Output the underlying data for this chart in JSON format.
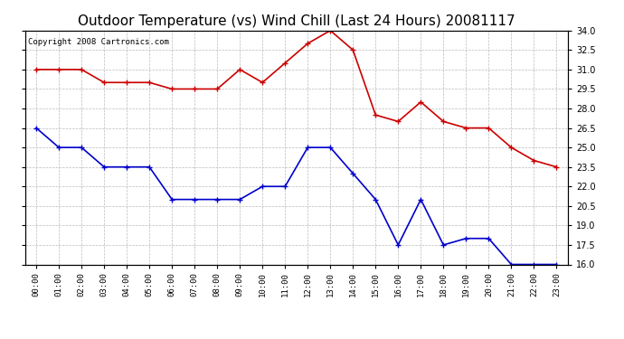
{
  "title": "Outdoor Temperature (vs) Wind Chill (Last 24 Hours) 20081117",
  "copyright_text": "Copyright 2008 Cartronics.com",
  "hours": [
    "00:00",
    "01:00",
    "02:00",
    "03:00",
    "04:00",
    "05:00",
    "06:00",
    "07:00",
    "08:00",
    "09:00",
    "10:00",
    "11:00",
    "12:00",
    "13:00",
    "14:00",
    "15:00",
    "16:00",
    "17:00",
    "18:00",
    "19:00",
    "20:00",
    "21:00",
    "22:00",
    "23:00"
  ],
  "temp": [
    31.0,
    31.0,
    31.0,
    30.0,
    30.0,
    30.0,
    29.5,
    29.5,
    29.5,
    31.0,
    30.0,
    31.5,
    33.0,
    34.0,
    32.5,
    27.5,
    27.0,
    28.5,
    27.0,
    26.5,
    26.5,
    25.0,
    24.0,
    23.5
  ],
  "windchill": [
    26.5,
    25.0,
    25.0,
    23.5,
    23.5,
    23.5,
    21.0,
    21.0,
    21.0,
    21.0,
    22.0,
    22.0,
    25.0,
    25.0,
    23.0,
    21.0,
    17.5,
    21.0,
    17.5,
    18.0,
    18.0,
    16.0,
    16.0,
    16.0
  ],
  "temp_color": "#cc0000",
  "windchill_color": "#0000cc",
  "ylim": [
    16.0,
    34.0
  ],
  "yticks": [
    16.0,
    17.5,
    19.0,
    20.5,
    22.0,
    23.5,
    25.0,
    26.5,
    28.0,
    29.5,
    31.0,
    32.5,
    34.0
  ],
  "background_color": "#ffffff",
  "grid_color": "#bbbbbb",
  "title_fontsize": 11,
  "copyright_fontsize": 6.5,
  "marker": "+",
  "marker_size": 4,
  "linewidth": 1.2
}
